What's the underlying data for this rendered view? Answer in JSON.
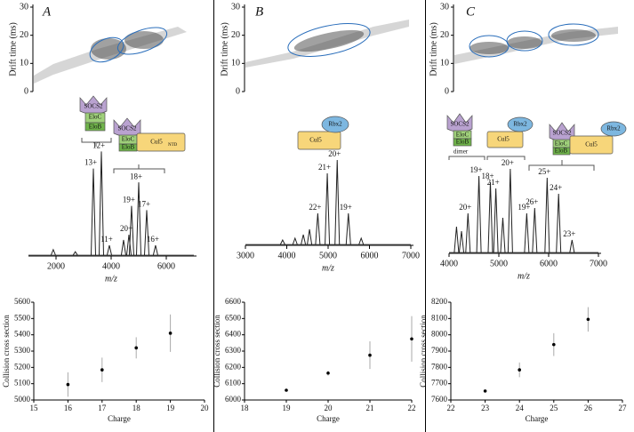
{
  "panels": [
    {
      "label": "A",
      "drift": {
        "ylabel": "Drift time (ms)",
        "ylim": [
          0,
          30
        ],
        "yticks": [
          0,
          10,
          20,
          30
        ]
      },
      "cartoon": {
        "complex1": [
          "SOCS2",
          "EloC",
          "EloB"
        ],
        "complex2": [
          "SOCS2",
          "EloC",
          "EloB",
          "Cul5",
          "NTD"
        ]
      },
      "spectrum": {
        "xlabel": "m/z",
        "xlim": [
          1000,
          7000
        ],
        "xticks": [
          2000,
          4000,
          6000
        ],
        "peaks": [
          {
            "label": null,
            "mz": 1900,
            "intensity": 6
          },
          {
            "label": null,
            "mz": 2700,
            "intensity": 4
          },
          {
            "label": "13+",
            "mz": 3355,
            "intensity": 82
          },
          {
            "label": "12+",
            "mz": 3645,
            "intensity": 98
          },
          {
            "label": "11+",
            "mz": 3935,
            "intensity": 10
          },
          {
            "label": null,
            "mz": 4450,
            "intensity": 15
          },
          {
            "label": "20+",
            "mz": 4645,
            "intensity": 20
          },
          {
            "label": "19+",
            "mz": 4740,
            "intensity": 47
          },
          {
            "label": "18+",
            "mz": 5000,
            "intensity": 69
          },
          {
            "label": "17+",
            "mz": 5290,
            "intensity": 43
          },
          {
            "label": "16+",
            "mz": 5610,
            "intensity": 10
          }
        ]
      },
      "ccs": {
        "type": "scatter",
        "ylabel": "Collision cross section",
        "xlabel": "Charge",
        "xlim": [
          15,
          20
        ],
        "xticks": [
          15,
          16,
          17,
          18,
          19,
          20
        ],
        "ylim": [
          5000,
          5600
        ],
        "yticks": [
          5000,
          5100,
          5200,
          5300,
          5400,
          5500,
          5600
        ],
        "x": [
          16,
          17,
          18,
          19
        ],
        "values": [
          5095,
          5185,
          5320,
          5410
        ],
        "errors": [
          75,
          75,
          65,
          115
        ]
      }
    },
    {
      "label": "B",
      "drift": {
        "ylabel": "Drift time (ms)",
        "ylim": [
          0,
          30
        ],
        "yticks": [
          0,
          10,
          20,
          30
        ]
      },
      "cartoon": {
        "complex1": [
          "Rbx2",
          "Cul5"
        ]
      },
      "spectrum": {
        "xlabel": "m/z",
        "xlim": [
          3000,
          7000
        ],
        "xticks": [
          3000,
          4000,
          5000,
          6000,
          7000
        ],
        "peaks": [
          {
            "label": null,
            "mz": 3900,
            "intensity": 6
          },
          {
            "label": null,
            "mz": 4200,
            "intensity": 8
          },
          {
            "label": null,
            "mz": 4400,
            "intensity": 12
          },
          {
            "label": null,
            "mz": 4550,
            "intensity": 18
          },
          {
            "label": "22+",
            "mz": 4750,
            "intensity": 36
          },
          {
            "label": "21+",
            "mz": 4980,
            "intensity": 81
          },
          {
            "label": "20+",
            "mz": 5220,
            "intensity": 96
          },
          {
            "label": "19+",
            "mz": 5490,
            "intensity": 36
          },
          {
            "label": null,
            "mz": 5800,
            "intensity": 8
          }
        ]
      },
      "ccs": {
        "type": "scatter",
        "ylabel": "Collision cross section",
        "xlabel": "Charge",
        "xlim": [
          18,
          22
        ],
        "xticks": [
          18,
          19,
          20,
          21,
          22
        ],
        "ylim": [
          6000,
          6600
        ],
        "yticks": [
          6000,
          6100,
          6200,
          6300,
          6400,
          6500,
          6600
        ],
        "x": [
          19,
          20,
          21,
          22
        ],
        "values": [
          6060,
          6165,
          6275,
          6375
        ],
        "errors": [
          5,
          15,
          85,
          140
        ]
      }
    },
    {
      "label": "C",
      "drift": {
        "ylabel": "Drift time (ms)",
        "ylim": [
          0,
          30
        ],
        "yticks": [
          0,
          10,
          20,
          30
        ]
      },
      "cartoon": {
        "complex1": [
          "SOCS2",
          "EloC",
          "EloB",
          "dimer"
        ],
        "complex2": [
          "Rbx2",
          "Cul5"
        ],
        "complex3": [
          "SOCS2",
          "EloC",
          "EloB",
          "Rbx2",
          "Cul5"
        ]
      },
      "spectrum": {
        "xlabel": "m/z",
        "xlim": [
          4000,
          7000
        ],
        "xticks": [
          4000,
          5000,
          6000,
          7000
        ],
        "peaks": [
          {
            "label": null,
            "mz": 4150,
            "intensity": 30
          },
          {
            "label": null,
            "mz": 4250,
            "intensity": 25
          },
          {
            "label": "20+",
            "mz": 4380,
            "intensity": 45
          },
          {
            "label": "19+",
            "mz": 4600,
            "intensity": 87
          },
          {
            "label": "18+",
            "mz": 4830,
            "intensity": 80
          },
          {
            "label": "21+",
            "mz": 4940,
            "intensity": 73
          },
          {
            "label": null,
            "mz": 5080,
            "intensity": 40
          },
          {
            "label": "20+",
            "mz": 5230,
            "intensity": 95
          },
          {
            "label": "19+",
            "mz": 5560,
            "intensity": 45
          },
          {
            "label": "26+",
            "mz": 5720,
            "intensity": 51
          },
          {
            "label": "25+",
            "mz": 5970,
            "intensity": 85
          },
          {
            "label": "24+",
            "mz": 6200,
            "intensity": 67
          },
          {
            "label": "23+",
            "mz": 6470,
            "intensity": 15
          }
        ]
      },
      "ccs": {
        "type": "scatter",
        "ylabel": "Collision cross section",
        "xlabel": "Charge",
        "xlim": [
          22,
          27
        ],
        "xticks": [
          22,
          23,
          24,
          25,
          26,
          27
        ],
        "ylim": [
          7600,
          8200
        ],
        "yticks": [
          7600,
          7700,
          7800,
          7900,
          8000,
          8100,
          8200
        ],
        "x": [
          23,
          24,
          25,
          26
        ],
        "values": [
          7655,
          7785,
          7940,
          8095
        ],
        "errors": [
          5,
          45,
          70,
          75
        ]
      }
    }
  ]
}
